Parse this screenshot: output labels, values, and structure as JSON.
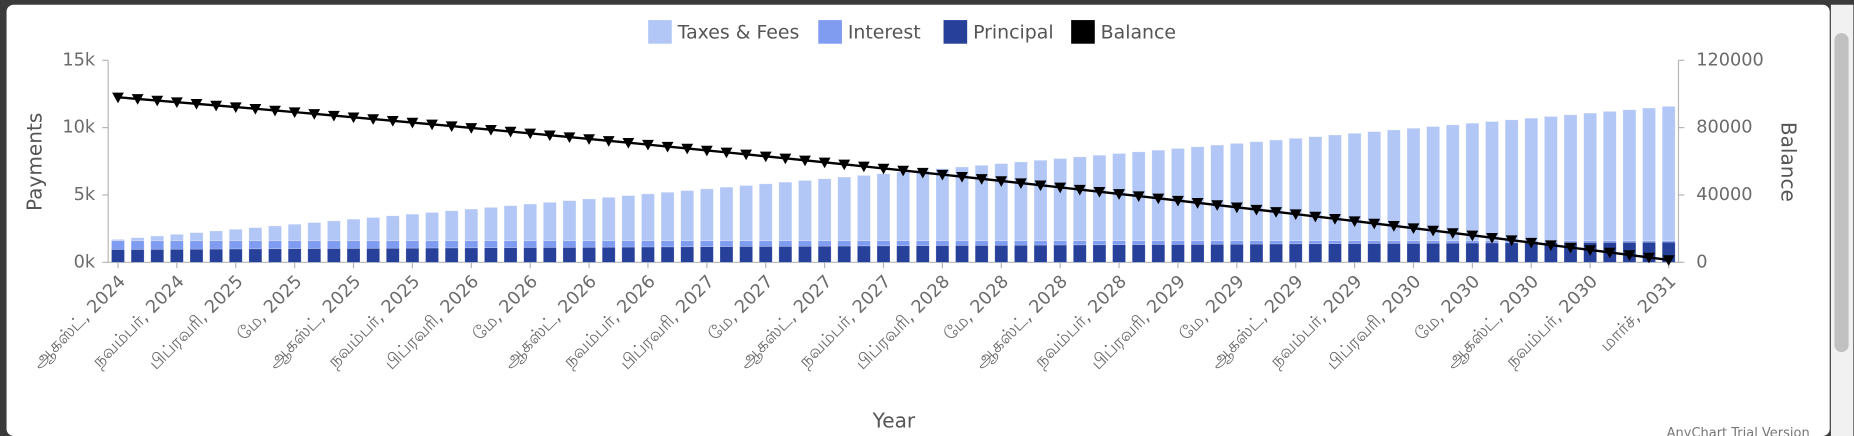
{
  "chart_data": {
    "type": "bar",
    "stacked": true,
    "x_label": "Year",
    "y_label": "Payments",
    "y2_label": "Balance",
    "watermark": "AnyChart Trial Version",
    "categories": [
      "ஆகஸ்ட், 2024",
      null,
      null,
      "நவம்பர், 2024",
      null,
      null,
      "பிப்ரவரி, 2025",
      null,
      null,
      "மே, 2025",
      null,
      null,
      "ஆகஸ்ட், 2025",
      null,
      null,
      "நவம்பர், 2025",
      null,
      null,
      "பிப்ரவரி, 2026",
      null,
      null,
      "மே, 2026",
      null,
      null,
      "ஆகஸ்ட், 2026",
      null,
      null,
      "நவம்பர், 2026",
      null,
      null,
      "பிப்ரவரி, 2027",
      null,
      null,
      "மே, 2027",
      null,
      null,
      "ஆகஸ்ட், 2027",
      null,
      null,
      "நவம்பர், 2027",
      null,
      null,
      "பிப்ரவரி, 2028",
      null,
      null,
      "மே, 2028",
      null,
      null,
      "ஆகஸ்ட், 2028",
      null,
      null,
      "நவம்பர், 2028",
      null,
      null,
      "பிப்ரவரி, 2029",
      null,
      null,
      "மே, 2029",
      null,
      null,
      "ஆகஸ்ட், 2029",
      null,
      null,
      "நவம்பர், 2029",
      null,
      null,
      "பிப்ரவரி, 2030",
      null,
      null,
      "மே, 2030",
      null,
      null,
      "ஆகஸ்ட், 2030",
      null,
      null,
      "நவம்பர், 2030",
      null,
      null,
      null,
      "மார்ச், 2031"
    ],
    "series": [
      {
        "name": "Principal",
        "color": "#27409a",
        "values": [
          950,
          957,
          964,
          971,
          978,
          985,
          992,
          999,
          1006,
          1013,
          1020,
          1027,
          1034,
          1041,
          1048,
          1055,
          1062,
          1069,
          1076,
          1083,
          1090,
          1097,
          1104,
          1111,
          1118,
          1125,
          1132,
          1139,
          1146,
          1153,
          1160,
          1167,
          1174,
          1181,
          1188,
          1195,
          1202,
          1209,
          1216,
          1223,
          1230,
          1237,
          1244,
          1251,
          1258,
          1265,
          1272,
          1279,
          1286,
          1293,
          1300,
          1307,
          1314,
          1321,
          1328,
          1335,
          1342,
          1349,
          1356,
          1363,
          1370,
          1377,
          1384,
          1391,
          1398,
          1405,
          1412,
          1419,
          1426,
          1433,
          1440,
          1447,
          1454,
          1461,
          1468,
          1475,
          1482,
          1489,
          1496,
          1503
        ]
      },
      {
        "name": "Interest",
        "color": "#7f9cf0",
        "values": [
          650,
          643,
          636,
          629,
          622,
          615,
          608,
          601,
          594,
          587,
          580,
          573,
          566,
          559,
          552,
          545,
          538,
          531,
          524,
          517,
          510,
          503,
          496,
          489,
          482,
          475,
          468,
          461,
          454,
          447,
          440,
          433,
          426,
          419,
          412,
          405,
          398,
          391,
          384,
          377,
          370,
          363,
          356,
          349,
          342,
          335,
          328,
          321,
          314,
          307,
          300,
          293,
          286,
          279,
          272,
          265,
          258,
          251,
          244,
          237,
          230,
          223,
          216,
          209,
          202,
          195,
          188,
          181,
          174,
          167,
          160,
          153,
          146,
          139,
          132,
          125,
          118,
          111,
          104,
          97
        ]
      },
      {
        "name": "Taxes & Fees",
        "color": "#b3c7f7",
        "values": [
          100,
          225,
          350,
          475,
          600,
          725,
          850,
          975,
          1100,
          1225,
          1350,
          1475,
          1600,
          1725,
          1850,
          1975,
          2100,
          2225,
          2350,
          2475,
          2600,
          2725,
          2850,
          2975,
          3100,
          3225,
          3350,
          3475,
          3600,
          3725,
          3850,
          3975,
          4100,
          4225,
          4350,
          4475,
          4600,
          4725,
          4850,
          4975,
          5100,
          5225,
          5350,
          5475,
          5600,
          5725,
          5850,
          5975,
          6100,
          6225,
          6350,
          6475,
          6600,
          6725,
          6850,
          6975,
          7100,
          7225,
          7350,
          7475,
          7600,
          7725,
          7850,
          7975,
          8100,
          8225,
          8350,
          8475,
          8600,
          8725,
          8850,
          8975,
          9100,
          9225,
          9350,
          9475,
          9600,
          9725,
          9850,
          9975
        ]
      },
      {
        "name": "Balance",
        "color": "#000000",
        "type": "line",
        "axis": "y2",
        "values": [
          98000,
          97050,
          96093,
          95129,
          94158,
          93180,
          92195,
          91203,
          90204,
          89198,
          88185,
          87165,
          86138,
          85104,
          84063,
          83015,
          81960,
          80898,
          79829,
          78753,
          77670,
          76580,
          75483,
          74379,
          73268,
          72150,
          71025,
          69893,
          68754,
          67608,
          66455,
          65295,
          64128,
          62954,
          61773,
          60585,
          59390,
          58188,
          56979,
          55763,
          54540,
          53310,
          52073,
          50829,
          49578,
          48320,
          47055,
          45783,
          44504,
          43218,
          41925,
          40625,
          39318,
          38004,
          36683,
          35355,
          34020,
          32678,
          31329,
          29973,
          28610,
          27240,
          25863,
          24479,
          23088,
          21690,
          20285,
          18873,
          17454,
          16028,
          14595,
          13155,
          11708,
          10254,
          8793,
          7325,
          5850,
          4368,
          2879,
          1383
        ]
      }
    ],
    "legend_order": [
      2,
      1,
      0,
      3
    ],
    "legend": "top",
    "ylim": [
      0,
      15000
    ],
    "yticks": [
      {
        "value": 0,
        "label": "0k"
      },
      {
        "value": 5000,
        "label": "5k"
      },
      {
        "value": 10000,
        "label": "10k"
      },
      {
        "value": 15000,
        "label": "15k"
      }
    ],
    "y2lim": [
      0,
      120000
    ],
    "y2ticks": [
      0,
      40000,
      80000,
      120000
    ],
    "grid": false
  }
}
